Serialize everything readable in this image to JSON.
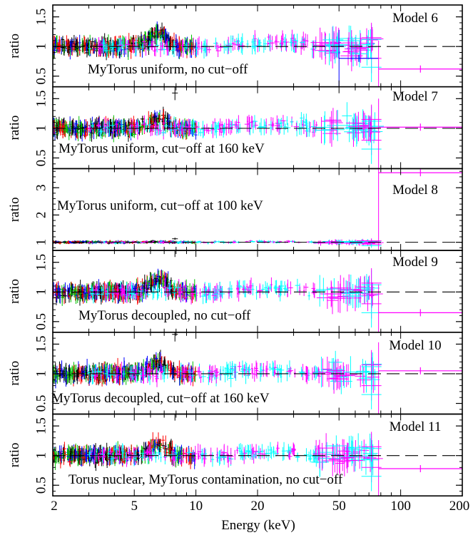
{
  "chart_data": {
    "type": "scatter",
    "xlabel": "Energy (keV)",
    "ylabel": "ratio",
    "xscale": "log",
    "xlim": [
      2,
      200
    ],
    "x_ticks": [
      2,
      5,
      10,
      20,
      50,
      100,
      200
    ],
    "x_tick_labels": [
      "2",
      "5",
      "10",
      "20",
      "50",
      "100",
      "200"
    ],
    "reference_line": 1,
    "series_colors": [
      "#000000",
      "#ff0000",
      "#00c000",
      "#0000ff",
      "#00ffff",
      "#ff00ff"
    ],
    "panels": [
      {
        "model": "Model 6",
        "label": "MyTorus uniform, no cut−off",
        "ylim": [
          0.32,
          1.7
        ],
        "y_ticks": [
          0.5,
          1,
          1.5
        ],
        "y_tick_labels": [
          "0.5",
          "1",
          "1.5"
        ],
        "hump": 0.22,
        "high_bins": [
          {
            "x": [
              50,
              78
            ],
            "y": 0.8,
            "color": "#0000ff"
          },
          {
            "x": [
              78,
              200
            ],
            "y": 0.62,
            "color": "#ff00ff"
          }
        ]
      },
      {
        "model": "Model 7",
        "label": "MyTorus uniform, cut−off at 160 keV",
        "ylim": [
          0.32,
          1.7
        ],
        "y_ticks": [
          0.5,
          1,
          1.5
        ],
        "y_tick_labels": [
          "0.5",
          "1",
          "1.5"
        ],
        "hump": 0.15,
        "high_bins": [
          {
            "x": [
              78,
              200
            ],
            "y": 1.02,
            "color": "#ff00ff"
          }
        ]
      },
      {
        "model": "Model 8",
        "label": "MyTorus uniform, cut−off at 100 keV",
        "ylim": [
          0.7,
          3.7
        ],
        "y_ticks": [
          1,
          2,
          3
        ],
        "y_tick_labels": [
          "1",
          "2",
          "3"
        ],
        "hump": 0.05,
        "high_bins": [
          {
            "x": [
              78,
              200
            ],
            "y": 3.55,
            "color": "#ff00ff"
          }
        ]
      },
      {
        "model": "Model 9",
        "label": "MyTorus decoupled,  no cut−off",
        "ylim": [
          0.32,
          1.7
        ],
        "y_ticks": [
          0.5,
          1,
          1.5
        ],
        "y_tick_labels": [
          "0.5",
          "1",
          "1.5"
        ],
        "hump": 0.2,
        "high_bins": [
          {
            "x": [
              78,
              200
            ],
            "y": 0.65,
            "color": "#ff00ff"
          }
        ]
      },
      {
        "model": "Model 10",
        "label": "MyTorus decoupled, cut−off at 160 keV",
        "ylim": [
          0.32,
          1.7
        ],
        "y_ticks": [
          0.5,
          1,
          1.5
        ],
        "y_tick_labels": [
          "0.5",
          "1",
          "1.5"
        ],
        "hump": 0.18,
        "high_bins": [
          {
            "x": [
              78,
              200
            ],
            "y": 1.05,
            "color": "#ff00ff"
          }
        ]
      },
      {
        "model": "Model 11",
        "label": "Torus nuclear, MyTorus contamination, no cut−off",
        "ylim": [
          0.32,
          1.7
        ],
        "y_ticks": [
          0.5,
          1,
          1.5
        ],
        "y_tick_labels": [
          "0.5",
          "1",
          "1.5"
        ],
        "hump": 0.2,
        "high_bins": [
          {
            "x": [
              78,
              200
            ],
            "y": 0.78,
            "color": "#ff00ff"
          }
        ]
      }
    ]
  }
}
